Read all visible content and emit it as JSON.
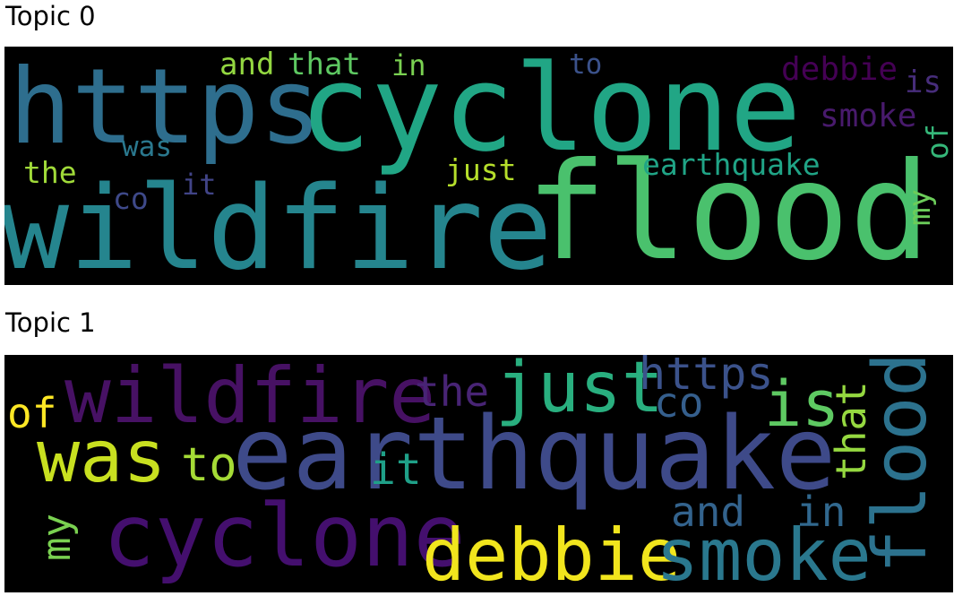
{
  "topics": [
    {
      "title": "Topic 0",
      "words": [
        {
          "text": "https",
          "color": "#2e6e8e"
        },
        {
          "text": "cyclone",
          "color": "#21a685"
        },
        {
          "text": "wildfire",
          "color": "#25858e"
        },
        {
          "text": "flood",
          "color": "#4ac16d"
        },
        {
          "text": "and",
          "color": "#93d741"
        },
        {
          "text": "that",
          "color": "#5ec962"
        },
        {
          "text": "in",
          "color": "#7ad151"
        },
        {
          "text": "to",
          "color": "#3b528b"
        },
        {
          "text": "debbie",
          "color": "#440154"
        },
        {
          "text": "is",
          "color": "#472d7b"
        },
        {
          "text": "smoke",
          "color": "#481a6c"
        },
        {
          "text": "of",
          "color": "#35b779"
        },
        {
          "text": "was",
          "color": "#2a788e"
        },
        {
          "text": "the",
          "color": "#a0da39"
        },
        {
          "text": "just",
          "color": "#b5de2b"
        },
        {
          "text": "earthquake",
          "color": "#20a486"
        },
        {
          "text": "it",
          "color": "#414487"
        },
        {
          "text": "co",
          "color": "#3e4989"
        },
        {
          "text": "my",
          "color": "#6ccd5a"
        }
      ]
    },
    {
      "title": "Topic 1",
      "words": [
        {
          "text": "of",
          "color": "#fde725"
        },
        {
          "text": "wildfire",
          "color": "#471164"
        },
        {
          "text": "the",
          "color": "#482475"
        },
        {
          "text": "just",
          "color": "#29af7f"
        },
        {
          "text": "https",
          "color": "#3b528b"
        },
        {
          "text": "is",
          "color": "#5ec962"
        },
        {
          "text": "co",
          "color": "#355f8d"
        },
        {
          "text": "was",
          "color": "#c8e020"
        },
        {
          "text": "to",
          "color": "#a5db36"
        },
        {
          "text": "earthquake",
          "color": "#3e4a89"
        },
        {
          "text": "it",
          "color": "#1fa088"
        },
        {
          "text": "that",
          "color": "#95d840"
        },
        {
          "text": "flood",
          "color": "#2c728e"
        },
        {
          "text": "my",
          "color": "#7ad151"
        },
        {
          "text": "cyclone",
          "color": "#440f6e"
        },
        {
          "text": "debbie",
          "color": "#f1e51d"
        },
        {
          "text": "smoke",
          "color": "#2a788e"
        },
        {
          "text": "and",
          "color": "#33638d"
        },
        {
          "text": "in",
          "color": "#31688e"
        }
      ]
    }
  ]
}
